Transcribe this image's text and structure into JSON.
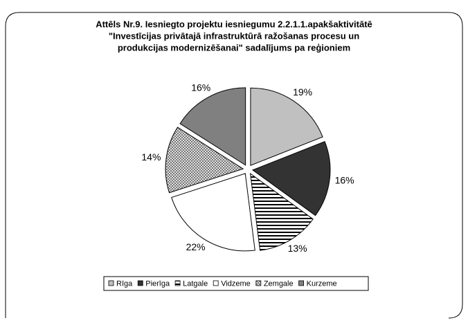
{
  "chart_data": {
    "type": "pie",
    "title": [
      "Attēls Nr.9. Iesniegto projektu iesniegumu 2.2.1.1.apakšaktivitātē",
      "\"Investīcijas privātajā infrastruktūrā ražošanas procesu un",
      "produkcijas modernizēšanai\" sadalījums pa reģioniem"
    ],
    "categories": [
      "Rīga",
      "Pierīga",
      "Latgale",
      "Vidzeme",
      "Zemgale",
      "Kurzeme"
    ],
    "values": [
      19,
      16,
      13,
      22,
      14,
      16
    ],
    "value_labels": [
      "19%",
      "16%",
      "13%",
      "22%",
      "14%",
      "16%"
    ],
    "colors": [
      "#c0c0c0",
      "#333333",
      "#ffffff",
      "#ffffff",
      "#c0c0c0",
      "#808080"
    ],
    "patterns": [
      null,
      null,
      "horizontal-stripes",
      null,
      "checker",
      null
    ],
    "legend": "bottom"
  }
}
